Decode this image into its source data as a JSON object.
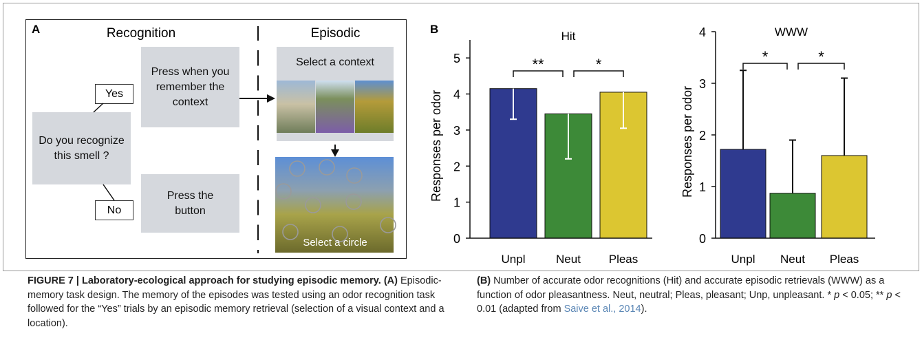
{
  "panel_a": {
    "label": "A",
    "recognition": "Recognition",
    "episodic": "Episodic",
    "question": "Do you recognize this smell ?",
    "yes": "Yes",
    "no": "No",
    "yes_action": "Press when you remember the context",
    "no_action": "Press the button",
    "select_context": "Select a context",
    "select_circle": "Select a circle"
  },
  "panel_b": {
    "label": "B"
  },
  "chart_data": [
    {
      "type": "bar",
      "title": "Hit",
      "ylabel": "Responses per odor",
      "categories": [
        "Unpl",
        "Neut",
        "Pleas"
      ],
      "values": [
        4.15,
        3.45,
        4.05
      ],
      "errors": [
        0.85,
        1.25,
        1.0
      ],
      "colors": [
        "#2f3a8f",
        "#3d8a38",
        "#dcc631"
      ],
      "error_bars": {
        "direction": "down",
        "color": "#ffffff"
      },
      "ylim": [
        0,
        5.5
      ],
      "yticks": [
        0,
        1,
        2,
        3,
        4,
        5
      ],
      "annotations": [
        "**",
        "*"
      ]
    },
    {
      "type": "bar",
      "title": "WWW",
      "ylabel": "Responses per odor",
      "categories": [
        "Unpl",
        "Neut",
        "Pleas"
      ],
      "values": [
        1.72,
        0.87,
        1.6
      ],
      "errors": [
        1.53,
        1.03,
        1.5
      ],
      "colors": [
        "#2f3a8f",
        "#3d8a38",
        "#dcc631"
      ],
      "error_bars": {
        "direction": "up",
        "color": "#111111"
      },
      "ylim": [
        0,
        4
      ],
      "yticks": [
        0,
        1,
        2,
        3,
        4
      ],
      "annotations": [
        "*",
        "*"
      ]
    }
  ],
  "caption": {
    "left": {
      "heading": "FIGURE 7 | Laboratory-ecological approach for studying episodic memory.",
      "tag": "(A)",
      "text": "Episodic-memory task design. The memory of the episodes was tested using an odor recognition task followed for the “Yes” trials by an episodic memory retrieval (selection of a visual context and a location)."
    },
    "right": {
      "tag": "(B)",
      "text1": "Number of accurate odor recognitions (Hit) and accurate episodic retrievals (WWW) as a function of odor pleasantness. Neut, neutral; Pleas, pleasant; Unp, unpleasant. *",
      "p1": "p",
      "text2": "< 0.05; **",
      "p2": "p",
      "text3": "< 0.01 (adapted from",
      "link": "Saive et al., 2014",
      "end": ")."
    }
  }
}
